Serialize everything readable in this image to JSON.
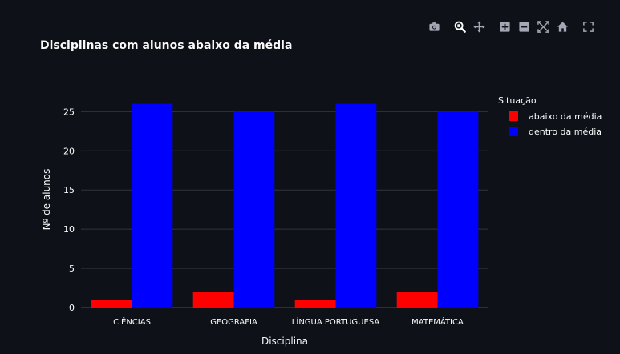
{
  "toolbar": {
    "icons": [
      "camera-icon",
      "zoom-icon",
      "pan-icon",
      "zoom-in-icon",
      "zoom-out-icon",
      "autoscale-icon",
      "reset-axes-icon",
      "fullscreen-icon"
    ]
  },
  "colors": {
    "background": "#0e1117",
    "grid": "#31333f",
    "axis_text": "#fafafa",
    "icon": "#a3a8b4",
    "icon_active": "#fafafa"
  },
  "chart_data": {
    "type": "bar",
    "title": "Disciplinas com alunos abaixo da média",
    "xlabel": "Disciplina",
    "ylabel": "Nº de alunos",
    "categories": [
      "CIÊNCIAS",
      "GEOGRAFIA",
      "LÍNGUA PORTUGUESA",
      "MATEMÁTICA"
    ],
    "series": [
      {
        "name": "abaixo da média",
        "color": "#ff0000",
        "values": [
          1,
          2,
          1,
          2
        ]
      },
      {
        "name": "dentro da média",
        "color": "#0000ff",
        "values": [
          26,
          25,
          26,
          25
        ]
      }
    ],
    "ylim": [
      0,
      28
    ],
    "yticks": [
      0,
      5,
      10,
      15,
      20,
      25
    ],
    "grid": true,
    "legend": {
      "title": "Situação",
      "placement": "top-right"
    }
  }
}
